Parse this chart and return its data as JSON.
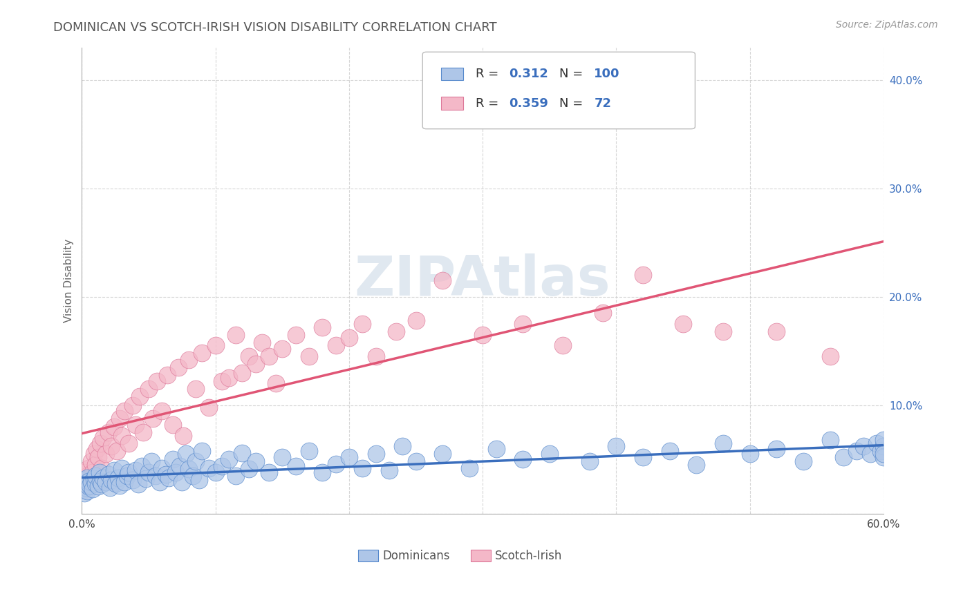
{
  "title": "DOMINICAN VS SCOTCH-IRISH VISION DISABILITY CORRELATION CHART",
  "source": "Source: ZipAtlas.com",
  "ylabel": "Vision Disability",
  "xlim": [
    0.0,
    0.6
  ],
  "ylim": [
    0.0,
    0.43
  ],
  "xticks": [
    0.0,
    0.1,
    0.2,
    0.3,
    0.4,
    0.5,
    0.6
  ],
  "xtick_labels": [
    "0.0%",
    "",
    "",
    "",
    "",
    "",
    "60.0%"
  ],
  "yticks": [
    0.0,
    0.1,
    0.2,
    0.3,
    0.4
  ],
  "ytick_labels": [
    "",
    "10.0%",
    "20.0%",
    "30.0%",
    "40.0%"
  ],
  "series1_name": "Dominicans",
  "series1_color": "#aec6e8",
  "series1_edge_color": "#5588cc",
  "series1_line_color": "#3a6ebd",
  "series1_R": 0.312,
  "series1_N": 100,
  "series2_name": "Scotch-Irish",
  "series2_color": "#f4b8c8",
  "series2_edge_color": "#dd7799",
  "series2_line_color": "#e05575",
  "series2_R": 0.359,
  "series2_N": 72,
  "background_color": "#ffffff",
  "grid_color": "#cccccc",
  "title_color": "#555555",
  "legend_text_color": "#3a6ebd",
  "dominicans_x": [
    0.001,
    0.001,
    0.002,
    0.002,
    0.003,
    0.003,
    0.004,
    0.004,
    0.005,
    0.005,
    0.006,
    0.007,
    0.008,
    0.009,
    0.01,
    0.01,
    0.012,
    0.013,
    0.014,
    0.015,
    0.016,
    0.018,
    0.02,
    0.021,
    0.022,
    0.024,
    0.025,
    0.027,
    0.028,
    0.03,
    0.032,
    0.034,
    0.035,
    0.038,
    0.04,
    0.042,
    0.045,
    0.048,
    0.05,
    0.052,
    0.055,
    0.058,
    0.06,
    0.063,
    0.065,
    0.068,
    0.07,
    0.073,
    0.075,
    0.078,
    0.08,
    0.083,
    0.085,
    0.088,
    0.09,
    0.095,
    0.1,
    0.105,
    0.11,
    0.115,
    0.12,
    0.125,
    0.13,
    0.14,
    0.15,
    0.16,
    0.17,
    0.18,
    0.19,
    0.2,
    0.21,
    0.22,
    0.23,
    0.24,
    0.25,
    0.27,
    0.29,
    0.31,
    0.33,
    0.35,
    0.38,
    0.4,
    0.42,
    0.44,
    0.46,
    0.48,
    0.5,
    0.52,
    0.54,
    0.56,
    0.57,
    0.58,
    0.585,
    0.59,
    0.595,
    0.598,
    0.6,
    0.6,
    0.6,
    0.6
  ],
  "dominicans_y": [
    0.022,
    0.028,
    0.019,
    0.031,
    0.024,
    0.027,
    0.021,
    0.033,
    0.025,
    0.03,
    0.026,
    0.029,
    0.023,
    0.032,
    0.028,
    0.035,
    0.025,
    0.038,
    0.03,
    0.027,
    0.033,
    0.029,
    0.036,
    0.024,
    0.031,
    0.04,
    0.028,
    0.033,
    0.026,
    0.042,
    0.029,
    0.035,
    0.038,
    0.031,
    0.04,
    0.027,
    0.044,
    0.032,
    0.038,
    0.048,
    0.035,
    0.029,
    0.042,
    0.036,
    0.033,
    0.05,
    0.038,
    0.044,
    0.029,
    0.055,
    0.041,
    0.035,
    0.048,
    0.031,
    0.058,
    0.042,
    0.038,
    0.044,
    0.05,
    0.035,
    0.056,
    0.041,
    0.048,
    0.038,
    0.052,
    0.044,
    0.058,
    0.038,
    0.046,
    0.052,
    0.042,
    0.055,
    0.04,
    0.062,
    0.048,
    0.055,
    0.042,
    0.06,
    0.05,
    0.055,
    0.048,
    0.062,
    0.052,
    0.058,
    0.045,
    0.065,
    0.055,
    0.06,
    0.048,
    0.068,
    0.052,
    0.058,
    0.062,
    0.055,
    0.065,
    0.058,
    0.062,
    0.052,
    0.068,
    0.055
  ],
  "scotchirish_x": [
    0.001,
    0.001,
    0.002,
    0.002,
    0.003,
    0.004,
    0.005,
    0.006,
    0.007,
    0.008,
    0.009,
    0.01,
    0.011,
    0.012,
    0.014,
    0.015,
    0.016,
    0.018,
    0.02,
    0.022,
    0.024,
    0.026,
    0.028,
    0.03,
    0.032,
    0.035,
    0.038,
    0.04,
    0.043,
    0.046,
    0.05,
    0.053,
    0.056,
    0.06,
    0.064,
    0.068,
    0.072,
    0.076,
    0.08,
    0.085,
    0.09,
    0.095,
    0.1,
    0.105,
    0.11,
    0.115,
    0.12,
    0.125,
    0.13,
    0.135,
    0.14,
    0.145,
    0.15,
    0.16,
    0.17,
    0.18,
    0.19,
    0.2,
    0.21,
    0.22,
    0.235,
    0.25,
    0.27,
    0.3,
    0.33,
    0.36,
    0.39,
    0.42,
    0.45,
    0.48,
    0.52,
    0.56
  ],
  "scotchirish_y": [
    0.025,
    0.032,
    0.022,
    0.038,
    0.028,
    0.035,
    0.042,
    0.03,
    0.048,
    0.038,
    0.055,
    0.045,
    0.06,
    0.052,
    0.065,
    0.042,
    0.07,
    0.055,
    0.075,
    0.062,
    0.08,
    0.058,
    0.088,
    0.072,
    0.095,
    0.065,
    0.1,
    0.082,
    0.108,
    0.075,
    0.115,
    0.088,
    0.122,
    0.095,
    0.128,
    0.082,
    0.135,
    0.072,
    0.142,
    0.115,
    0.148,
    0.098,
    0.155,
    0.122,
    0.125,
    0.165,
    0.13,
    0.145,
    0.138,
    0.158,
    0.145,
    0.12,
    0.152,
    0.165,
    0.145,
    0.172,
    0.155,
    0.162,
    0.175,
    0.145,
    0.168,
    0.178,
    0.215,
    0.165,
    0.175,
    0.155,
    0.185,
    0.22,
    0.175,
    0.168,
    0.168,
    0.145
  ]
}
